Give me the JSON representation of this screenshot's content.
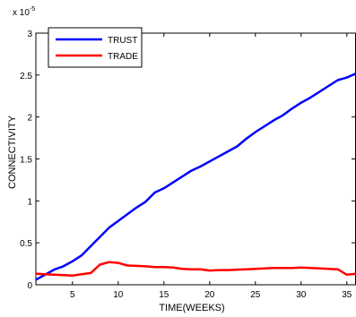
{
  "chart_data": {
    "type": "line",
    "title": "",
    "xlabel": "TIME(WEEKS)",
    "ylabel": "CONNECTIVITY",
    "exponent_label": "x 10",
    "exponent_power": "-5",
    "xlim": [
      1,
      36
    ],
    "ylim": [
      0,
      3
    ],
    "xticks": [
      5,
      10,
      15,
      20,
      25,
      30,
      35
    ],
    "yticks": [
      0,
      0.5,
      1,
      1.5,
      2,
      2.5,
      3
    ],
    "ytick_labels": [
      "0",
      "0.5",
      "1",
      "1.5",
      "2",
      "2.5",
      "3"
    ],
    "legend_position": "top-left",
    "grid": false,
    "x": [
      1,
      2,
      3,
      4,
      5,
      6,
      7,
      8,
      9,
      10,
      11,
      12,
      13,
      14,
      15,
      16,
      17,
      18,
      19,
      20,
      21,
      22,
      23,
      24,
      25,
      26,
      27,
      28,
      29,
      30,
      31,
      32,
      33,
      34,
      35,
      36
    ],
    "series": [
      {
        "name": "TRUST",
        "color": "#0000ff",
        "values": [
          0.06,
          0.12,
          0.18,
          0.22,
          0.28,
          0.35,
          0.46,
          0.57,
          0.68,
          0.76,
          0.84,
          0.92,
          0.99,
          1.1,
          1.15,
          1.22,
          1.29,
          1.36,
          1.41,
          1.47,
          1.53,
          1.59,
          1.65,
          1.74,
          1.82,
          1.89,
          1.96,
          2.02,
          2.1,
          2.17,
          2.23,
          2.3,
          2.37,
          2.44,
          2.47,
          2.52
        ]
      },
      {
        "name": "TRADE",
        "color": "#ff0000",
        "values": [
          0.13,
          0.125,
          0.12,
          0.115,
          0.11,
          0.125,
          0.14,
          0.24,
          0.27,
          0.26,
          0.23,
          0.225,
          0.22,
          0.21,
          0.21,
          0.205,
          0.19,
          0.185,
          0.185,
          0.17,
          0.175,
          0.175,
          0.18,
          0.185,
          0.19,
          0.195,
          0.2,
          0.2,
          0.2,
          0.205,
          0.2,
          0.195,
          0.19,
          0.185,
          0.12,
          0.13
        ]
      }
    ]
  }
}
